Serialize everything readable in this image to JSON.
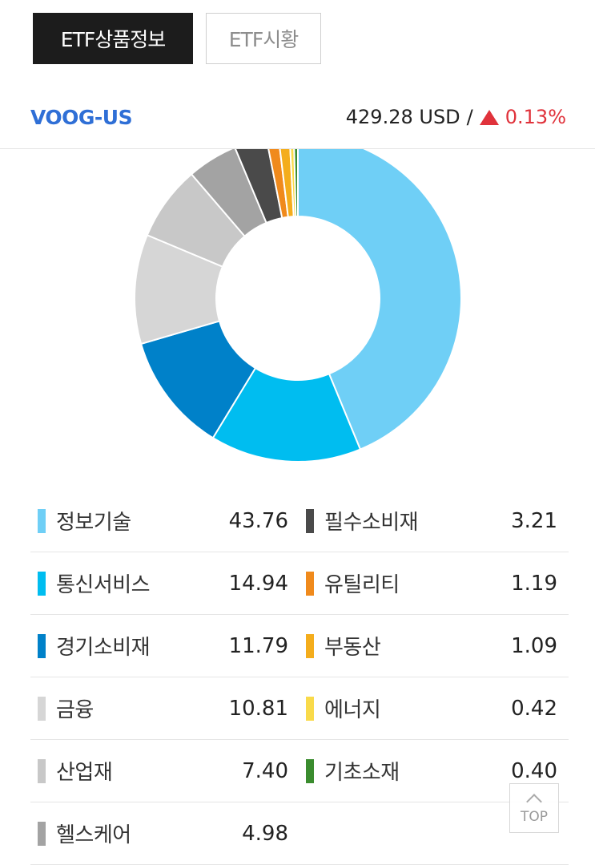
{
  "tabs": {
    "active_label": "ETF상품정보",
    "inactive_label": "ETF시황"
  },
  "quote": {
    "ticker": "VOOG-US",
    "price": "429.28 USD",
    "separator": "/",
    "change": "0.13%",
    "change_color": "#e0323b",
    "direction": "up"
  },
  "top_button": {
    "label": "TOP",
    "icon": "chevron-up-icon"
  },
  "chart_data": {
    "type": "pie",
    "style": "donut",
    "categories": [
      "정보기술",
      "통신서비스",
      "경기소비재",
      "금융",
      "산업재",
      "헬스케어",
      "필수소비재",
      "유틸리티",
      "부동산",
      "에너지",
      "기초소재"
    ],
    "values": [
      43.76,
      14.94,
      11.79,
      10.81,
      7.4,
      4.98,
      3.21,
      1.19,
      1.09,
      0.42,
      0.4
    ],
    "value_labels": [
      "43.76",
      "14.94",
      "11.79",
      "10.81",
      "7.40",
      "4.98",
      "3.21",
      "1.19",
      "1.09",
      "0.42",
      "0.40"
    ],
    "colors": [
      "#6fcff6",
      "#00bdf0",
      "#0081c9",
      "#d6d6d6",
      "#c8c8c8",
      "#a3a3a3",
      "#4a4a4a",
      "#f08a1c",
      "#f4ad1c",
      "#f9da4a",
      "#3a8c2e"
    ],
    "legend_placement": "bottom"
  }
}
